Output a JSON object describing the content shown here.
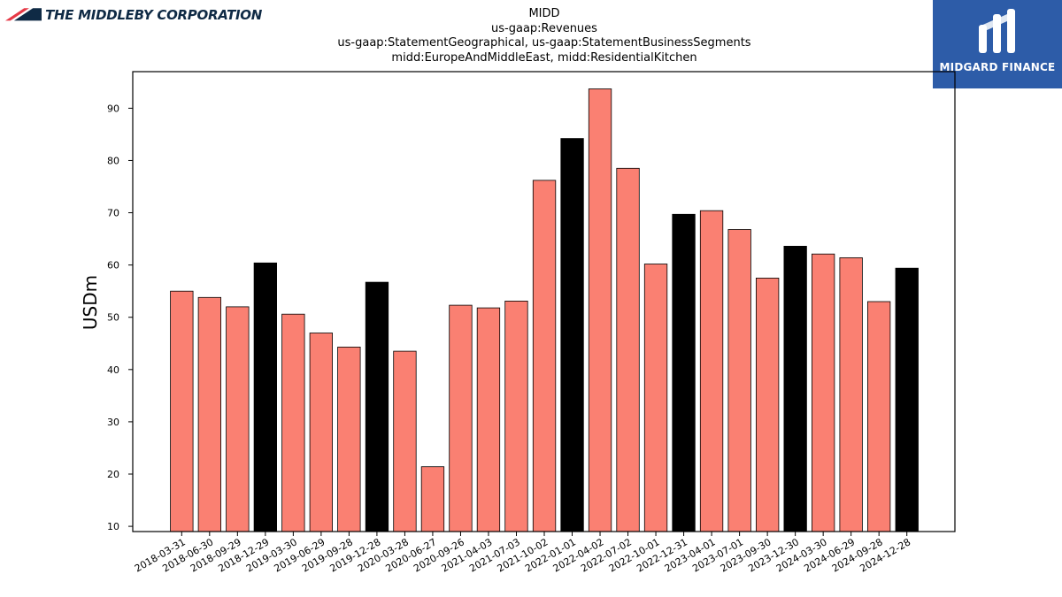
{
  "header": {
    "company_logo_text": "THE MIDDLEBY CORPORATION",
    "brand_badge_text": "MIDGARD FINANCE"
  },
  "chart_data": {
    "type": "bar",
    "title_lines": [
      "MIDD",
      "us-gaap:Revenues",
      "us-gaap:StatementGeographical, us-gaap:StatementBusinessSegments",
      "midd:EuropeAndMiddleEast, midd:ResidentialKitchen"
    ],
    "ylabel": "USDm",
    "xlabel": "",
    "ylim": [
      9,
      97
    ],
    "yticks": [
      10,
      20,
      30,
      40,
      50,
      60,
      70,
      80,
      90
    ],
    "grid": false,
    "colors": {
      "default": "#fa8072",
      "highlight": "#000000",
      "edge": "#000000"
    },
    "categories": [
      "2018-03-31",
      "2018-06-30",
      "2018-09-29",
      "2018-12-29",
      "2019-03-30",
      "2019-06-29",
      "2019-09-28",
      "2019-12-28",
      "2020-03-28",
      "2020-06-27",
      "2020-09-26",
      "2021-04-03",
      "2021-07-03",
      "2021-10-02",
      "2022-01-01",
      "2022-04-02",
      "2022-07-02",
      "2022-10-01",
      "2022-12-31",
      "2023-04-01",
      "2023-07-01",
      "2023-09-30",
      "2023-12-30",
      "2024-03-30",
      "2024-06-29",
      "2024-09-28",
      "2024-12-28"
    ],
    "values": [
      55.0,
      53.8,
      52.0,
      60.4,
      50.6,
      47.0,
      44.3,
      56.7,
      43.5,
      21.4,
      52.3,
      51.8,
      53.1,
      76.2,
      84.2,
      93.7,
      78.5,
      60.2,
      69.7,
      70.4,
      66.8,
      57.5,
      63.6,
      62.1,
      61.4,
      53.0,
      59.4
    ],
    "highlight": [
      false,
      false,
      false,
      true,
      false,
      false,
      false,
      true,
      false,
      false,
      false,
      false,
      false,
      false,
      true,
      false,
      false,
      false,
      true,
      false,
      false,
      false,
      true,
      false,
      false,
      false,
      true
    ]
  }
}
